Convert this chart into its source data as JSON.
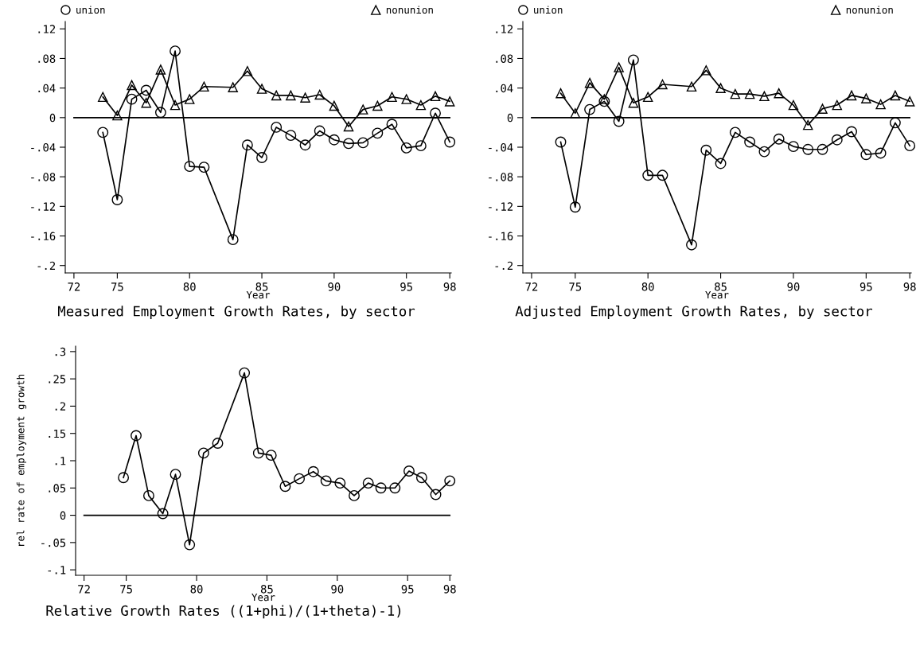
{
  "chart_data": [
    {
      "type": "line",
      "title": "Measured Employment Growth Rates, by sector",
      "xlabel": "Year",
      "x": [
        74,
        75,
        76,
        77,
        78,
        79,
        80,
        81,
        83,
        84,
        85,
        86,
        87,
        88,
        89,
        90,
        91,
        92,
        93,
        94,
        95,
        96,
        97,
        98
      ],
      "series": [
        {
          "name": "union",
          "color": "#000000",
          "marker": "circle",
          "values": [
            -0.02,
            -0.111,
            0.025,
            0.037,
            0.007,
            0.09,
            -0.066,
            -0.067,
            -0.165,
            -0.037,
            -0.054,
            -0.013,
            -0.024,
            -0.037,
            -0.018,
            -0.03,
            -0.035,
            -0.034,
            -0.021,
            -0.009,
            -0.041,
            -0.038,
            0.006,
            -0.033
          ]
        },
        {
          "name": "nonunion",
          "color": "#000000",
          "marker": "triangle",
          "values": [
            0.028,
            0.003,
            0.044,
            0.02,
            0.065,
            0.017,
            0.025,
            0.042,
            0.041,
            0.063,
            0.039,
            0.03,
            0.03,
            0.027,
            0.031,
            0.016,
            -0.012,
            0.011,
            0.016,
            0.028,
            0.025,
            0.017,
            0.029,
            0.022
          ]
        }
      ],
      "xlim": [
        71.4,
        98.1
      ],
      "xticks": [
        72,
        75,
        80,
        85,
        90,
        95,
        98
      ],
      "ylim": [
        -0.21,
        0.13
      ],
      "yticks": [
        {
          "value": 0.12,
          "label": ".12"
        },
        {
          "value": 0.08,
          "label": ".08"
        },
        {
          "value": 0.04,
          "label": ".04"
        },
        0,
        {
          "value": -0.04,
          "label": "-.04"
        },
        {
          "value": -0.08,
          "label": "-.08"
        },
        {
          "value": -0.12,
          "label": "-.12"
        },
        {
          "value": -0.16,
          "label": "-.16"
        },
        {
          "value": -0.2,
          "label": "-.2"
        }
      ],
      "ref_lines": [
        {
          "axis": "y",
          "value": 0,
          "color": "#000000"
        }
      ],
      "grid": false,
      "legend": "top"
    },
    {
      "type": "line",
      "title": "Adjusted Employment Growth Rates, by sector",
      "xlabel": "Year",
      "x": [
        74,
        75,
        76,
        77,
        78,
        79,
        80,
        81,
        83,
        84,
        85,
        86,
        87,
        88,
        89,
        90,
        91,
        92,
        93,
        94,
        95,
        96,
        97,
        98
      ],
      "series": [
        {
          "name": "union",
          "color": "#000000",
          "marker": "circle",
          "values": [
            -0.033,
            -0.121,
            0.011,
            0.022,
            -0.005,
            0.078,
            -0.078,
            -0.078,
            -0.172,
            -0.044,
            -0.062,
            -0.02,
            -0.033,
            -0.046,
            -0.029,
            -0.039,
            -0.043,
            -0.043,
            -0.03,
            -0.019,
            -0.05,
            -0.048,
            -0.007,
            -0.038
          ]
        },
        {
          "name": "nonunion",
          "color": "#000000",
          "marker": "triangle",
          "values": [
            0.033,
            0.006,
            0.047,
            0.025,
            0.068,
            0.02,
            0.028,
            0.045,
            0.042,
            0.064,
            0.04,
            0.032,
            0.032,
            0.029,
            0.033,
            0.017,
            -0.01,
            0.012,
            0.017,
            0.03,
            0.026,
            0.018,
            0.03,
            0.022
          ]
        }
      ],
      "xlim": [
        71.4,
        98.1
      ],
      "xticks": [
        72,
        75,
        80,
        85,
        90,
        95,
        98
      ],
      "ylim": [
        -0.21,
        0.13
      ],
      "yticks": [
        {
          "value": 0.12,
          "label": ".12"
        },
        {
          "value": 0.08,
          "label": ".08"
        },
        {
          "value": 0.04,
          "label": ".04"
        },
        0,
        {
          "value": -0.04,
          "label": "-.04"
        },
        {
          "value": -0.08,
          "label": "-.08"
        },
        {
          "value": -0.12,
          "label": "-.12"
        },
        {
          "value": -0.16,
          "label": "-.16"
        },
        {
          "value": -0.2,
          "label": "-.2"
        }
      ],
      "ref_lines": [
        {
          "axis": "y",
          "value": 0,
          "color": "#000000"
        }
      ],
      "grid": false,
      "legend": "top"
    },
    {
      "type": "line",
      "title": "Relative Growth Rates ((1+phi)/(1+theta)-1)",
      "xlabel": "Year",
      "ylabel": "rel rate of employment growth",
      "x": [
        74.8,
        75.7,
        76.6,
        77.6,
        78.5,
        79.5,
        80.5,
        81.5,
        83.4,
        84.4,
        85.3,
        86.3,
        87.3,
        88.3,
        89.2,
        90.2,
        91.2,
        92.2,
        93.1,
        94.1,
        95.1,
        96.0,
        97.0,
        98.0
      ],
      "series": [
        {
          "color": "#000000",
          "marker": "circle",
          "values": [
            0.069,
            0.146,
            0.036,
            0.003,
            0.075,
            -0.054,
            0.114,
            0.132,
            0.261,
            0.114,
            0.11,
            0.053,
            0.067,
            0.08,
            0.063,
            0.059,
            0.036,
            0.059,
            0.05,
            0.05,
            0.081,
            0.069,
            0.038,
            0.063
          ]
        }
      ],
      "xlim": [
        71.4,
        98.1
      ],
      "xticks": [
        72,
        75,
        80,
        85,
        90,
        95,
        98
      ],
      "ylim": [
        -0.11,
        0.31
      ],
      "yticks": [
        {
          "value": 0.3,
          "label": ".3"
        },
        {
          "value": 0.25,
          "label": ".25"
        },
        {
          "value": 0.2,
          "label": ".2"
        },
        {
          "value": 0.15,
          "label": ".15"
        },
        {
          "value": 0.1,
          "label": ".1"
        },
        {
          "value": 0.05,
          "label": ".05"
        },
        0,
        {
          "value": -0.05,
          "label": "-.05"
        },
        {
          "value": -0.1,
          "label": "-.1"
        }
      ],
      "ref_lines": [
        {
          "axis": "y",
          "value": 0,
          "color": "#000000"
        }
      ],
      "grid": false,
      "legend": false
    }
  ]
}
